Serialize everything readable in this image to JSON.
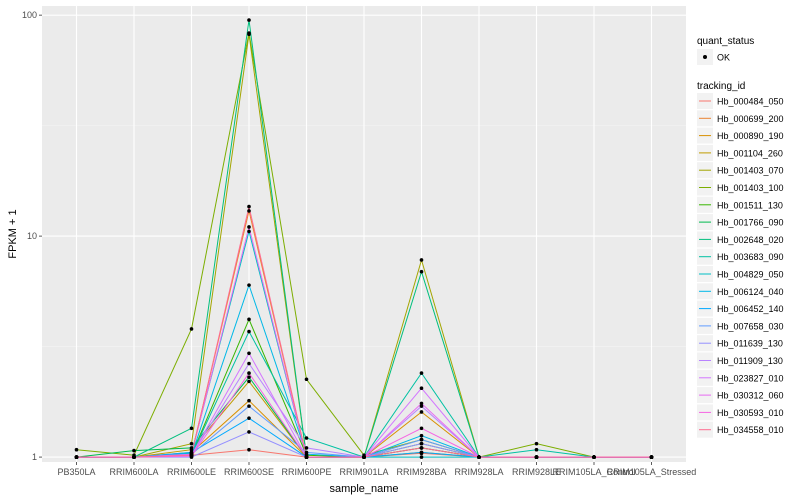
{
  "chart_data": {
    "type": "line",
    "xlabel": "sample_name",
    "ylabel": "FPKM + 1",
    "y_scale": "log10",
    "ylim": [
      0.95,
      110
    ],
    "y_ticks": [
      1,
      10,
      100
    ],
    "y_tick_labels": [
      "1",
      "10",
      "100"
    ],
    "categories": [
      "PB350LA",
      "RRIM600LA",
      "RRIM600LE",
      "RRIM600SE",
      "RRIM600PE",
      "RRIM901LA",
      "RRIM928BA",
      "RRIM928LA",
      "RRIM928LE",
      "RRIM105LA_Control",
      "RRIM105LA_Stressed"
    ],
    "legend": {
      "shape_title": "quant_status",
      "shape_entries": [
        "OK"
      ],
      "color_title": "tracking_id"
    },
    "series": [
      {
        "name": "Hb_000484_050",
        "color": "#F8766D",
        "values": [
          1.0,
          1.0,
          1.02,
          1.08,
          1.0,
          1.0,
          1.04,
          1.0,
          1.0,
          1.0,
          1.0
        ]
      },
      {
        "name": "Hb_000699_200",
        "color": "#EA8331",
        "values": [
          1.0,
          1.0,
          1.03,
          13.0,
          1.0,
          1.0,
          1.1,
          1.0,
          1.0,
          1.0,
          1.0
        ]
      },
      {
        "name": "Hb_000890_190",
        "color": "#D89000",
        "values": [
          1.0,
          1.0,
          1.05,
          1.8,
          1.0,
          1.0,
          1.6,
          1.0,
          1.0,
          1.0,
          1.0
        ]
      },
      {
        "name": "Hb_001104_260",
        "color": "#C09B00",
        "values": [
          1.0,
          1.0,
          1.08,
          2.2,
          1.0,
          1.0,
          1.05,
          1.0,
          1.0,
          1.0,
          1.0
        ]
      },
      {
        "name": "Hb_001403_070",
        "color": "#A3A500",
        "values": [
          1.0,
          1.0,
          1.15,
          82.0,
          1.0,
          1.0,
          7.8,
          1.0,
          1.0,
          1.0,
          1.0
        ]
      },
      {
        "name": "Hb_001403_100",
        "color": "#7CAE00",
        "values": [
          1.08,
          1.02,
          3.8,
          83.0,
          2.25,
          1.02,
          1.2,
          1.0,
          1.15,
          1.0,
          1.0
        ]
      },
      {
        "name": "Hb_001511_130",
        "color": "#39B600",
        "values": [
          1.0,
          1.0,
          1.02,
          4.2,
          1.02,
          1.0,
          1.15,
          1.0,
          1.0,
          1.0,
          1.0
        ]
      },
      {
        "name": "Hb_001766_090",
        "color": "#00BB4E",
        "values": [
          1.0,
          1.07,
          1.1,
          2.3,
          1.0,
          1.0,
          1.1,
          1.0,
          1.0,
          1.0,
          1.0
        ]
      },
      {
        "name": "Hb_002648_020",
        "color": "#00BF7D",
        "values": [
          1.0,
          1.0,
          1.35,
          95.0,
          1.0,
          1.0,
          6.9,
          1.0,
          1.0,
          1.0,
          1.0
        ]
      },
      {
        "name": "Hb_003683_090",
        "color": "#00C1A3",
        "values": [
          1.0,
          1.0,
          1.02,
          3.7,
          1.22,
          1.0,
          2.4,
          1.0,
          1.08,
          1.0,
          1.0
        ]
      },
      {
        "name": "Hb_004829_050",
        "color": "#00BFC4",
        "values": [
          1.0,
          1.0,
          1.04,
          10.5,
          1.0,
          1.0,
          1.0,
          1.0,
          1.0,
          1.0,
          1.0
        ]
      },
      {
        "name": "Hb_006124_040",
        "color": "#00B8E7",
        "values": [
          1.0,
          1.0,
          1.02,
          6.0,
          1.03,
          1.0,
          1.25,
          1.0,
          1.0,
          1.0,
          1.0
        ]
      },
      {
        "name": "Hb_006452_140",
        "color": "#00A9FF",
        "values": [
          1.0,
          1.0,
          1.05,
          1.5,
          1.0,
          1.0,
          1.05,
          1.0,
          1.0,
          1.0,
          1.0
        ]
      },
      {
        "name": "Hb_007658_030",
        "color": "#619CFF",
        "values": [
          1.0,
          1.0,
          1.03,
          1.7,
          1.05,
          1.0,
          1.2,
          1.0,
          1.0,
          1.0,
          1.0
        ]
      },
      {
        "name": "Hb_011639_130",
        "color": "#9590FF",
        "values": [
          1.0,
          1.0,
          1.0,
          1.3,
          1.0,
          1.0,
          1.15,
          1.0,
          1.0,
          1.0,
          1.0
        ]
      },
      {
        "name": "Hb_011909_130",
        "color": "#B983FF",
        "values": [
          1.0,
          1.0,
          1.02,
          2.65,
          1.1,
          1.0,
          1.7,
          1.0,
          1.0,
          1.0,
          1.0
        ]
      },
      {
        "name": "Hb_023827_010",
        "color": "#D376FF",
        "values": [
          1.0,
          1.0,
          1.02,
          2.95,
          1.0,
          1.0,
          2.05,
          1.0,
          1.0,
          1.0,
          1.0
        ]
      },
      {
        "name": "Hb_030312_060",
        "color": "#E76BF3",
        "values": [
          1.0,
          1.0,
          1.03,
          11.0,
          1.0,
          1.0,
          1.75,
          1.0,
          1.0,
          1.0,
          1.0
        ]
      },
      {
        "name": "Hb_030593_010",
        "color": "#F564E3",
        "values": [
          1.0,
          1.0,
          1.01,
          2.4,
          1.0,
          1.0,
          1.35,
          1.0,
          1.0,
          1.0,
          1.0
        ]
      },
      {
        "name": "Hb_034558_010",
        "color": "#FF6C91",
        "values": [
          1.0,
          1.0,
          1.02,
          13.6,
          1.0,
          1.0,
          1.1,
          1.0,
          1.0,
          1.0,
          1.0
        ]
      }
    ]
  }
}
